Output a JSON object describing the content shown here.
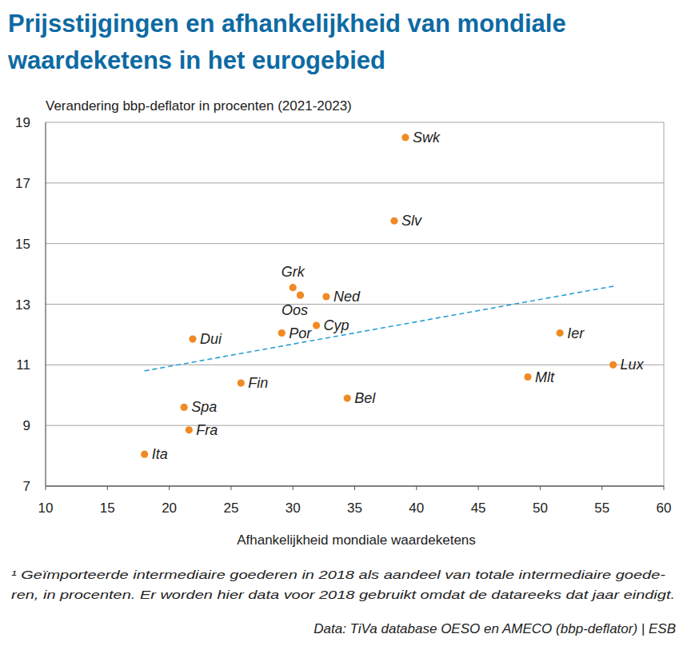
{
  "chart_data": {
    "type": "scatter",
    "title": [
      "Prijsstijgingen en afhankelijkheid van mondiale",
      "waardeketens in het eurogebied"
    ],
    "y_label": "Verandering bbp-deflator in procenten (2021-2023)",
    "x_label": "Afhankelijkheid mondiale waardeketens",
    "footnote": [
      "¹ Geïmporteerde intermediaire goederen in 2018 als aandeel van totale intermediaire goede-",
      "ren, in procenten. Er worden hier data voor 2018 gebruikt omdat de datareeks dat jaar eindigt."
    ],
    "source": "Data: TiVa database OESO en AMECO (bbp-deflator) | ESB",
    "labels": [
      "Swk",
      "Slv",
      "Grk",
      "Oos",
      "Ned",
      "Cyp",
      "Por",
      "Dui",
      "Ier",
      "Lux",
      "Mlt",
      "Fin",
      "Bel",
      "Spa",
      "Fra",
      "Ita"
    ],
    "x": [
      39.1,
      38.2,
      30.0,
      30.6,
      32.7,
      31.9,
      29.1,
      21.9,
      51.6,
      55.9,
      49.0,
      25.8,
      34.4,
      21.2,
      21.6,
      18.0
    ],
    "values": [
      18.5,
      15.75,
      13.55,
      13.3,
      13.25,
      12.3,
      12.05,
      11.85,
      12.05,
      11.0,
      10.6,
      10.4,
      9.9,
      9.6,
      8.85,
      8.05
    ],
    "color": "#f08a24",
    "marker": "circle",
    "trendline": {
      "x": [
        18,
        56
      ],
      "values": [
        10.8,
        13.6
      ],
      "color": "#2a9fd6",
      "line_style": "dashed"
    },
    "xlim": [
      10,
      60
    ],
    "ylim": [
      7,
      19
    ],
    "xticks": [
      10,
      15,
      20,
      25,
      30,
      35,
      40,
      45,
      50,
      55,
      60
    ],
    "yticks": [
      7,
      9,
      11,
      13,
      15,
      17,
      19
    ],
    "grid": true
  }
}
